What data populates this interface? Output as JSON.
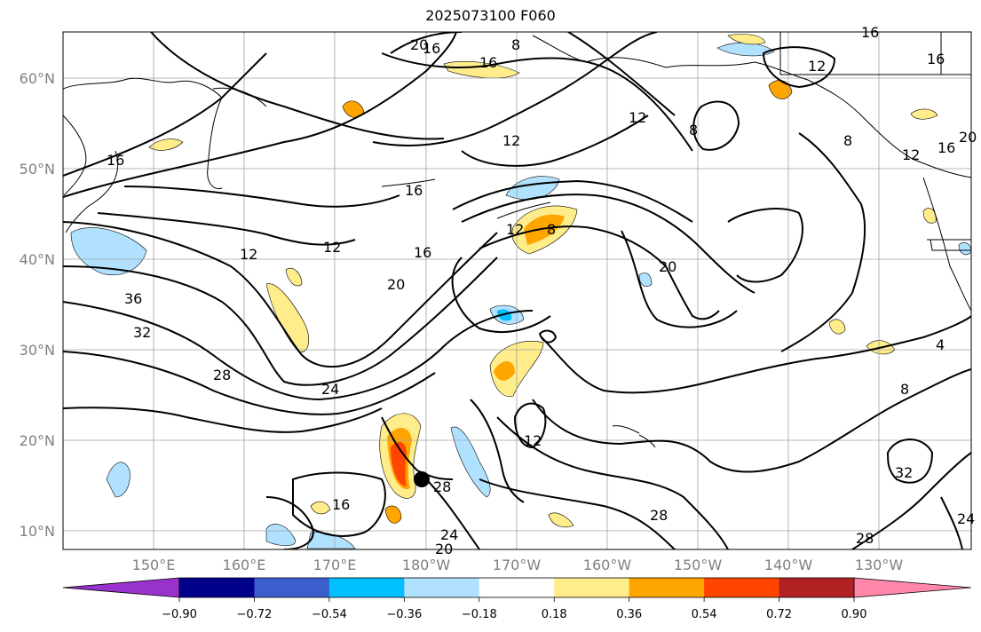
{
  "title": "2025073100 F060",
  "map": {
    "lat_labels": [
      "60°N",
      "50°N",
      "40°N",
      "30°N",
      "20°N",
      "10°N"
    ],
    "lon_labels": [
      "150°E",
      "160°E",
      "170°E",
      "180°W",
      "170°W",
      "160°W",
      "150°W",
      "140°W",
      "130°W"
    ],
    "contour_labels": [
      "16",
      "8",
      "16",
      "20",
      "12",
      "16",
      "16",
      "12",
      "8",
      "12",
      "16",
      "8",
      "16",
      "20",
      "12",
      "12",
      "12",
      "16",
      "8",
      "20",
      "16",
      "36",
      "20",
      "32",
      "24",
      "28",
      "12",
      "12",
      "28",
      "28",
      "16",
      "24",
      "20",
      "28",
      "4",
      "8",
      "32",
      "24"
    ],
    "colors": {
      "coast": "#000000",
      "grid": "#a0a0a0",
      "contour": "#000000"
    }
  },
  "colorbar": {
    "colors": [
      "#9932cc",
      "#00008b",
      "#3a5fcd",
      "#00bfff",
      "#b0e2ff",
      "#ffffff",
      "#ffec8b",
      "#ffa500",
      "#ff4500",
      "#b22222",
      "#ff88aa"
    ],
    "tick_labels": [
      "−0.90",
      "−0.72",
      "−0.54",
      "−0.36",
      "−0.18",
      "0.18",
      "0.36",
      "0.54",
      "0.72",
      "0.90"
    ]
  }
}
